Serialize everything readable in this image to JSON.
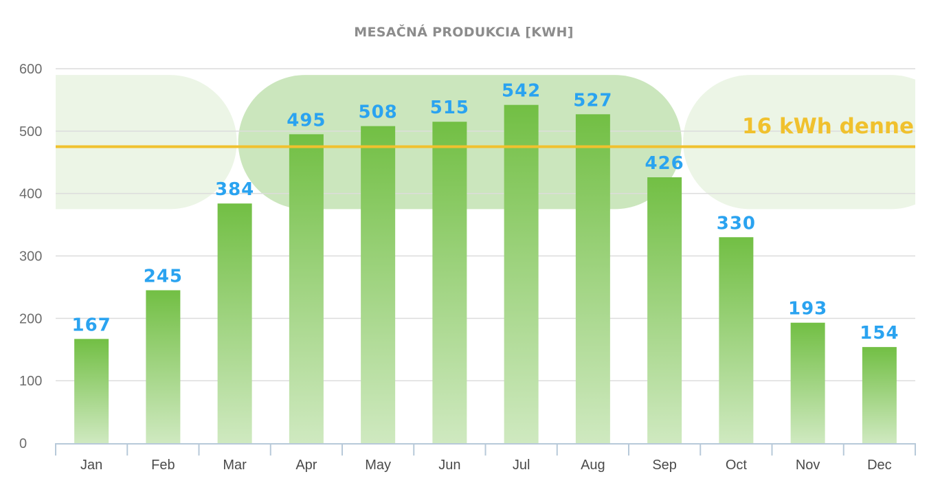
{
  "chart_data": {
    "type": "bar",
    "title": "MESAČNÁ PRODUKCIA [KWH]",
    "categories": [
      "Jan",
      "Feb",
      "Mar",
      "Apr",
      "May",
      "Jun",
      "Jul",
      "Aug",
      "Sep",
      "Oct",
      "Nov",
      "Dec"
    ],
    "values": [
      167,
      245,
      384,
      495,
      508,
      515,
      542,
      527,
      426,
      330,
      193,
      154
    ],
    "data_labels": [
      "167",
      "245",
      "384",
      "495",
      "508",
      "515",
      "542",
      "527",
      "426",
      "330",
      "193",
      "154"
    ],
    "ylim": [
      0,
      600
    ],
    "yticks": [
      0,
      100,
      200,
      300,
      400,
      500,
      600
    ],
    "grid": true,
    "reference_line": {
      "value": 475,
      "label": "16 kWh denne",
      "color": "#f0c12e"
    },
    "highlight_band": {
      "from": 375,
      "to": 590,
      "peak_months": [
        "Apr",
        "May",
        "Jun",
        "Jul",
        "Aug",
        "Sep"
      ]
    },
    "colors": {
      "bar_top": "#72bf44",
      "bar_bottom": "#cfe9c0",
      "data_label": "#2aa3f0",
      "band_peak": "#cbe6bd",
      "band_side": "#ecf5e6",
      "grid": "#dcdcdc",
      "axis": "#b7c9d9"
    }
  }
}
